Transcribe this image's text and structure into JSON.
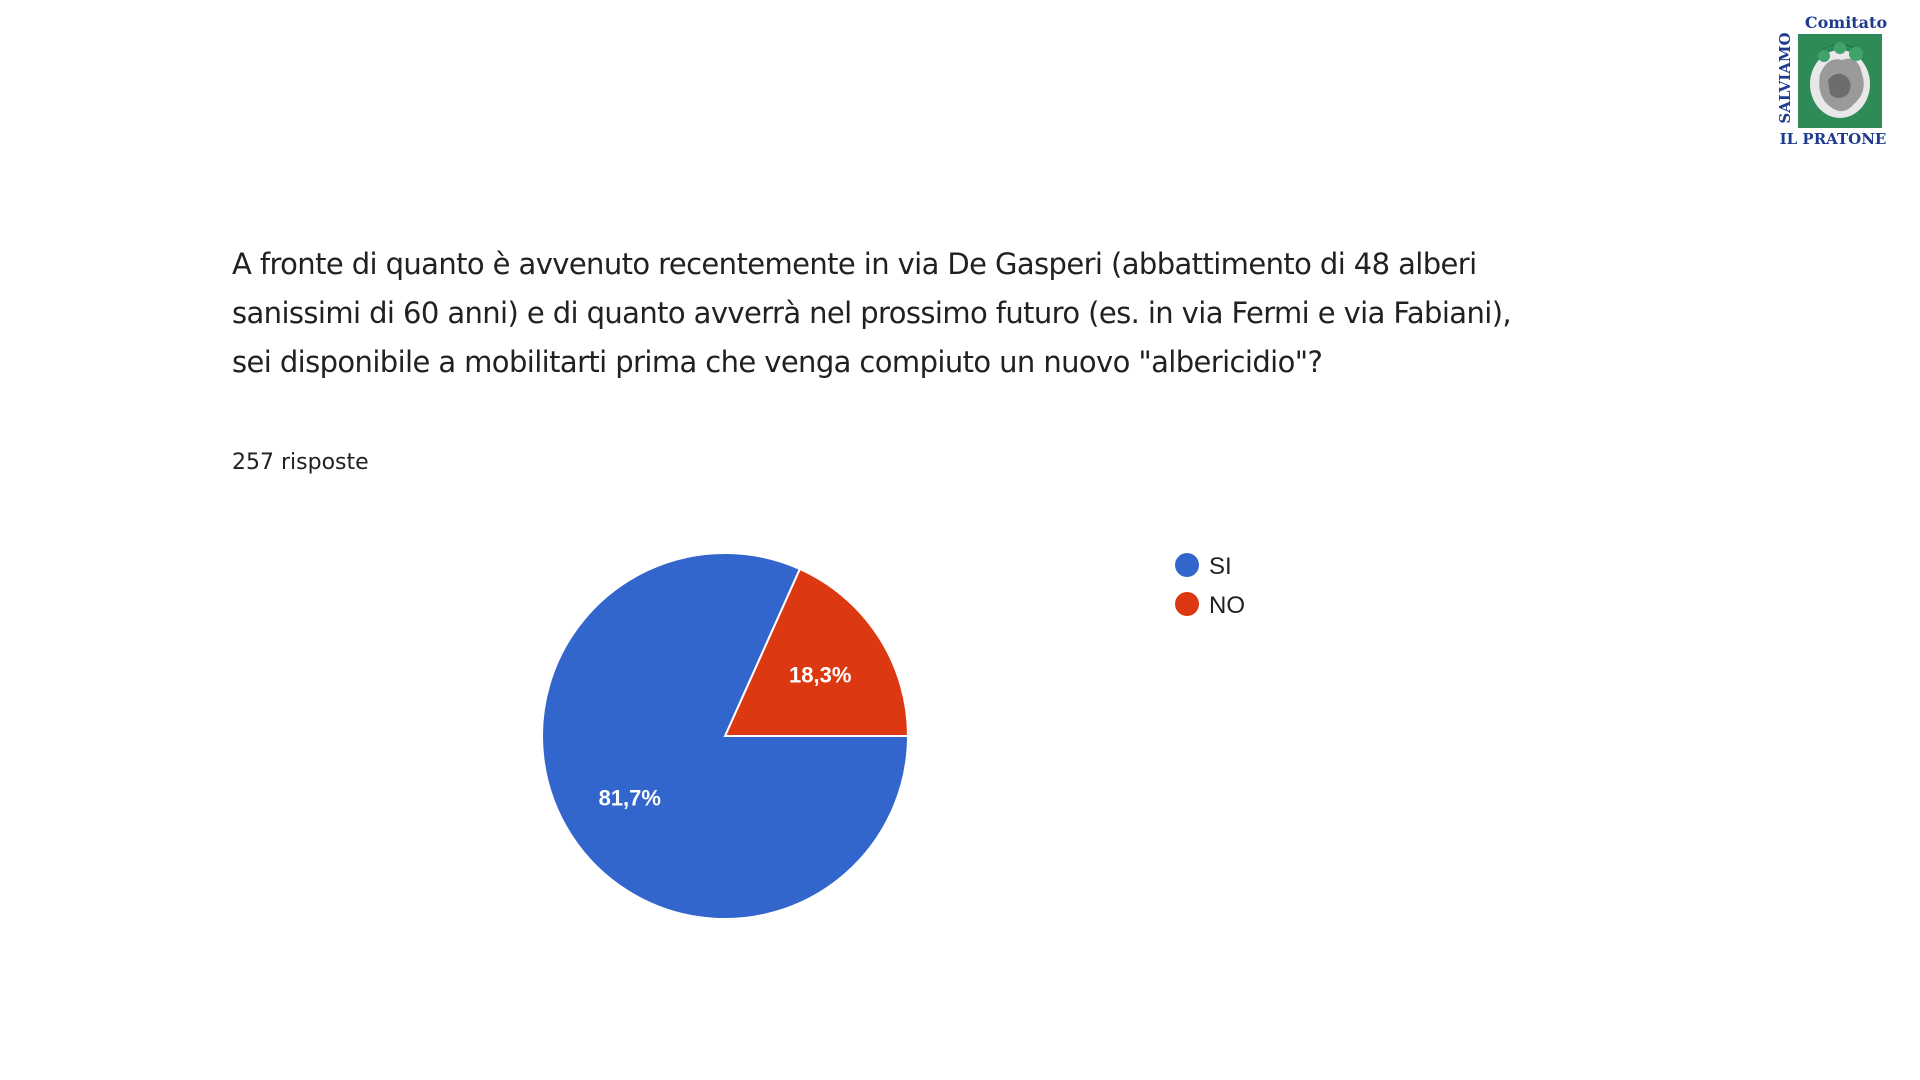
{
  "logo": {
    "top_text": "Comitato",
    "side_text": "SALVIAMO",
    "bottom_text": "IL PRATONE",
    "colors": {
      "text": "#1f3b8f",
      "emblem": "#2e8b57"
    }
  },
  "question": "A fronte di quanto è avvenuto recentemente in via De Gasperi (abbattimento di 48 alberi sanissimi di 60 anni) e di quanto avverrà nel prossimo futuro (es. in via Fermi e via Fabiani), sei disponibile a mobilitarti prima che venga compiuto un nuovo \"albericidio\"?",
  "responses": "257 risposte",
  "chart_data": {
    "type": "pie",
    "categories": [
      "SI",
      "NO"
    ],
    "values": [
      81.7,
      18.3
    ],
    "labels": [
      "81,7%",
      "18,3%"
    ],
    "colors": [
      "#3366cc",
      "#dc3912"
    ],
    "legend_position": "right",
    "start": "NO slice begins at 3 o'clock, drawn counter-clockwise"
  }
}
